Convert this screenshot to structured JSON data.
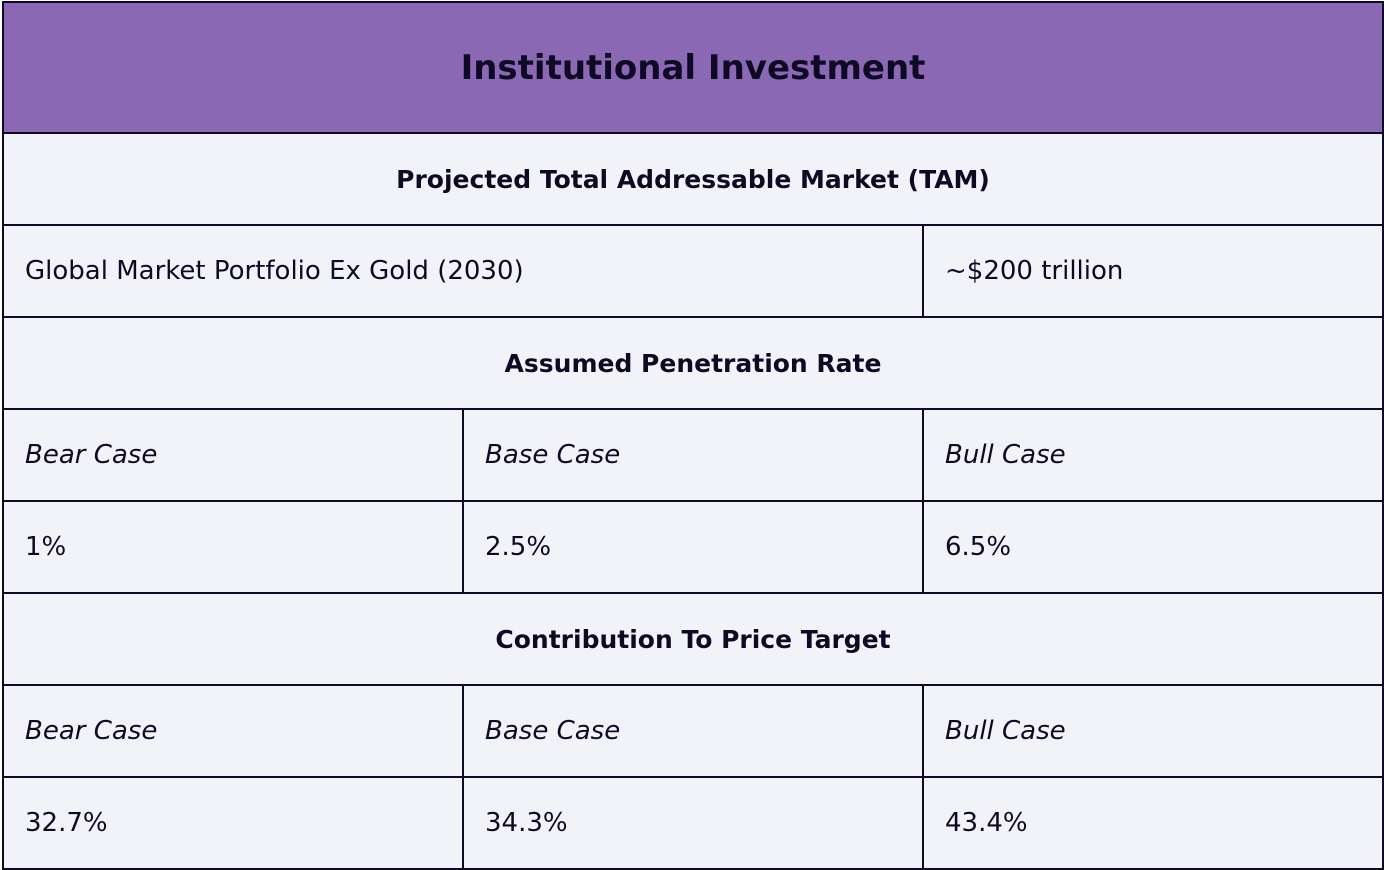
{
  "title": "Institutional Investment",
  "tam": {
    "heading": "Projected Total Addressable Market (TAM)",
    "label": "Global Market Portfolio Ex Gold (2030)",
    "value": "~$200 trillion"
  },
  "penetration": {
    "heading": "Assumed Penetration Rate",
    "cases": [
      "Bear Case",
      "Base Case",
      "Bull Case"
    ],
    "values": [
      "1%",
      "2.5%",
      "6.5%"
    ]
  },
  "contribution": {
    "heading": "Contribution To Price Target",
    "cases": [
      "Bear Case",
      "Base Case",
      "Bull Case"
    ],
    "values": [
      "32.7%",
      "34.3%",
      "43.4%"
    ]
  },
  "colors": {
    "header_bg": "#8b68b4",
    "cell_bg": "#f2f3f8",
    "border": "#0f0a24",
    "text": "#0f0a24"
  }
}
